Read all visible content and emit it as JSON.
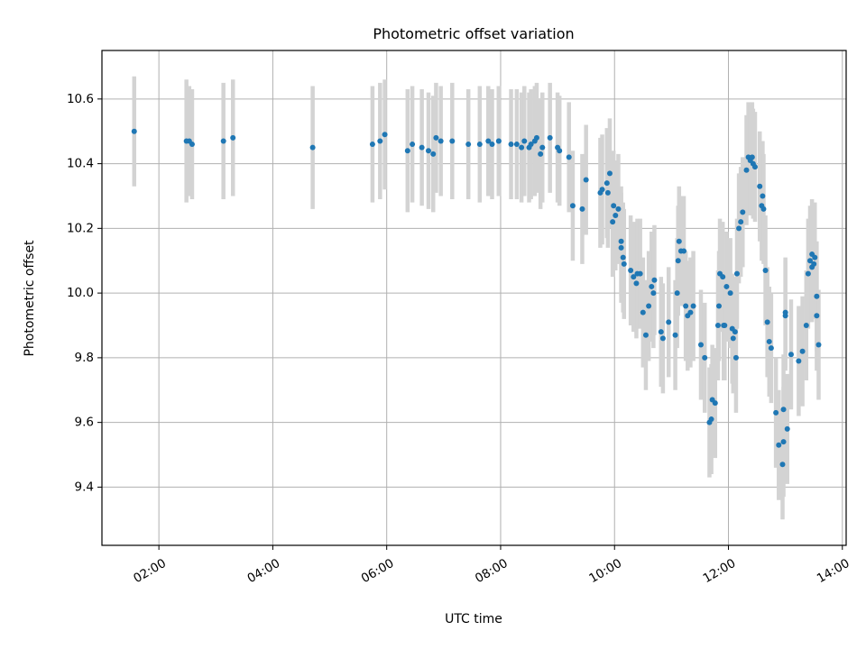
{
  "chart_data": {
    "type": "scatter",
    "title": "Photometric offset variation",
    "xlabel": "UTC time",
    "ylabel": "Photometric offset",
    "xlim": [
      "01:00",
      "14:04"
    ],
    "ylim": [
      9.22,
      10.75
    ],
    "x_ticks": [
      "02:00",
      "04:00",
      "06:00",
      "08:00",
      "10:00",
      "12:00",
      "14:00"
    ],
    "y_ticks": [
      "9.4",
      "9.6",
      "9.8",
      "10.0",
      "10.2",
      "10.4",
      "10.6"
    ],
    "grid": true,
    "marker_color": "#1f77b4",
    "errorbar_color": "#d3d3d3",
    "series": [
      {
        "x": [
          "01:34",
          "02:29",
          "02:32",
          "02:35",
          "03:08",
          "03:18",
          "04:42",
          "05:45",
          "05:53",
          "05:58",
          "06:22",
          "06:27",
          "06:37",
          "06:44",
          "06:49",
          "06:52",
          "06:57",
          "07:09",
          "07:26",
          "07:38",
          "07:47",
          "07:51",
          "07:58",
          "07:58",
          "08:11",
          "08:17",
          "08:22",
          "08:25",
          "08:30",
          "08:32",
          "08:36",
          "08:38",
          "08:42",
          "08:44",
          "08:52",
          "09:00",
          "09:02",
          "09:12",
          "09:16",
          "09:26",
          "09:30",
          "09:45",
          "09:47",
          "09:52",
          "09:53",
          "09:55",
          "09:58",
          "09:59",
          "10:01",
          "10:04",
          "10:07",
          "10:07",
          "10:09",
          "10:10",
          "10:17",
          "10:20",
          "10:23",
          "10:24",
          "10:27",
          "10:30",
          "10:33",
          "10:36",
          "10:39",
          "10:41",
          "10:42",
          "10:49",
          "10:51",
          "10:57",
          "11:04",
          "11:06",
          "11:07",
          "11:08",
          "11:10",
          "11:13",
          "11:15",
          "11:17",
          "11:20",
          "11:23",
          "11:31",
          "11:35",
          "11:40",
          "11:42",
          "11:43",
          "11:46",
          "11:49",
          "11:50",
          "11:51",
          "11:54",
          "11:55",
          "11:56",
          "11:58",
          "12:02",
          "12:04",
          "12:05",
          "12:07",
          "12:08",
          "12:09",
          "12:11",
          "12:13",
          "12:15",
          "12:19",
          "12:21",
          "12:23",
          "12:25",
          "12:26",
          "12:28",
          "12:33",
          "12:35",
          "12:36",
          "12:37",
          "12:39",
          "12:41",
          "12:43",
          "12:45",
          "12:50",
          "12:53",
          "12:57",
          "12:58",
          "12:58",
          "13:00",
          "13:00",
          "13:02",
          "13:06",
          "13:14",
          "13:18",
          "13:22",
          "13:24",
          "13:26",
          "13:28",
          "13:28",
          "13:30",
          "13:31",
          "13:33",
          "13:33",
          "13:35"
        ],
        "y": [
          10.5,
          10.47,
          10.47,
          10.46,
          10.47,
          10.48,
          10.45,
          10.46,
          10.47,
          10.49,
          10.44,
          10.46,
          10.45,
          10.44,
          10.43,
          10.48,
          10.47,
          10.47,
          10.46,
          10.46,
          10.47,
          10.46,
          10.47,
          10.47,
          10.46,
          10.46,
          10.45,
          10.47,
          10.45,
          10.46,
          10.47,
          10.48,
          10.43,
          10.45,
          10.48,
          10.45,
          10.44,
          10.42,
          10.27,
          10.26,
          10.35,
          10.31,
          10.32,
          10.34,
          10.31,
          10.37,
          10.22,
          10.27,
          10.24,
          10.26,
          10.16,
          10.14,
          10.11,
          10.09,
          10.07,
          10.05,
          10.03,
          10.06,
          10.06,
          9.94,
          9.87,
          9.96,
          10.02,
          10.0,
          10.04,
          9.88,
          9.86,
          9.91,
          9.87,
          10.0,
          10.1,
          10.16,
          10.13,
          10.13,
          9.96,
          9.93,
          9.94,
          9.96,
          9.84,
          9.8,
          9.6,
          9.61,
          9.67,
          9.66,
          9.9,
          9.96,
          10.06,
          10.05,
          9.9,
          9.9,
          10.02,
          10.0,
          9.89,
          9.86,
          9.88,
          9.8,
          10.06,
          10.2,
          10.22,
          10.25,
          10.38,
          10.42,
          10.41,
          10.42,
          10.4,
          10.39,
          10.33,
          10.27,
          10.3,
          10.26,
          10.07,
          9.91,
          9.85,
          9.83,
          9.63,
          9.53,
          9.47,
          9.54,
          9.64,
          9.93,
          9.94,
          9.58,
          9.81,
          9.79,
          9.82,
          9.9,
          10.06,
          10.1,
          10.08,
          10.12,
          10.09,
          10.11,
          9.99,
          9.93,
          9.84
        ],
        "yerr": [
          0.17,
          0.19,
          0.17,
          0.17,
          0.18,
          0.18,
          0.19,
          0.18,
          0.18,
          0.17,
          0.19,
          0.18,
          0.18,
          0.18,
          0.18,
          0.17,
          0.17,
          0.18,
          0.17,
          0.18,
          0.17,
          0.17,
          0.17,
          0.17,
          0.17,
          0.17,
          0.17,
          0.17,
          0.17,
          0.17,
          0.17,
          0.17,
          0.17,
          0.17,
          0.17,
          0.17,
          0.17,
          0.17,
          0.17,
          0.17,
          0.17,
          0.17,
          0.17,
          0.17,
          0.17,
          0.17,
          0.17,
          0.17,
          0.17,
          0.17,
          0.17,
          0.17,
          0.17,
          0.17,
          0.17,
          0.17,
          0.17,
          0.17,
          0.17,
          0.17,
          0.17,
          0.17,
          0.17,
          0.17,
          0.17,
          0.17,
          0.17,
          0.17,
          0.17,
          0.17,
          0.17,
          0.17,
          0.17,
          0.17,
          0.17,
          0.17,
          0.17,
          0.17,
          0.17,
          0.17,
          0.17,
          0.17,
          0.17,
          0.17,
          0.17,
          0.17,
          0.17,
          0.17,
          0.17,
          0.17,
          0.17,
          0.17,
          0.17,
          0.17,
          0.17,
          0.17,
          0.17,
          0.17,
          0.17,
          0.17,
          0.17,
          0.17,
          0.17,
          0.17,
          0.17,
          0.17,
          0.17,
          0.17,
          0.17,
          0.17,
          0.17,
          0.17,
          0.17,
          0.17,
          0.17,
          0.17,
          0.17,
          0.17,
          0.17,
          0.17,
          0.17,
          0.17,
          0.17,
          0.17,
          0.17,
          0.17,
          0.17,
          0.17,
          0.17,
          0.17,
          0.17,
          0.17,
          0.17,
          0.17,
          0.17
        ]
      }
    ]
  }
}
